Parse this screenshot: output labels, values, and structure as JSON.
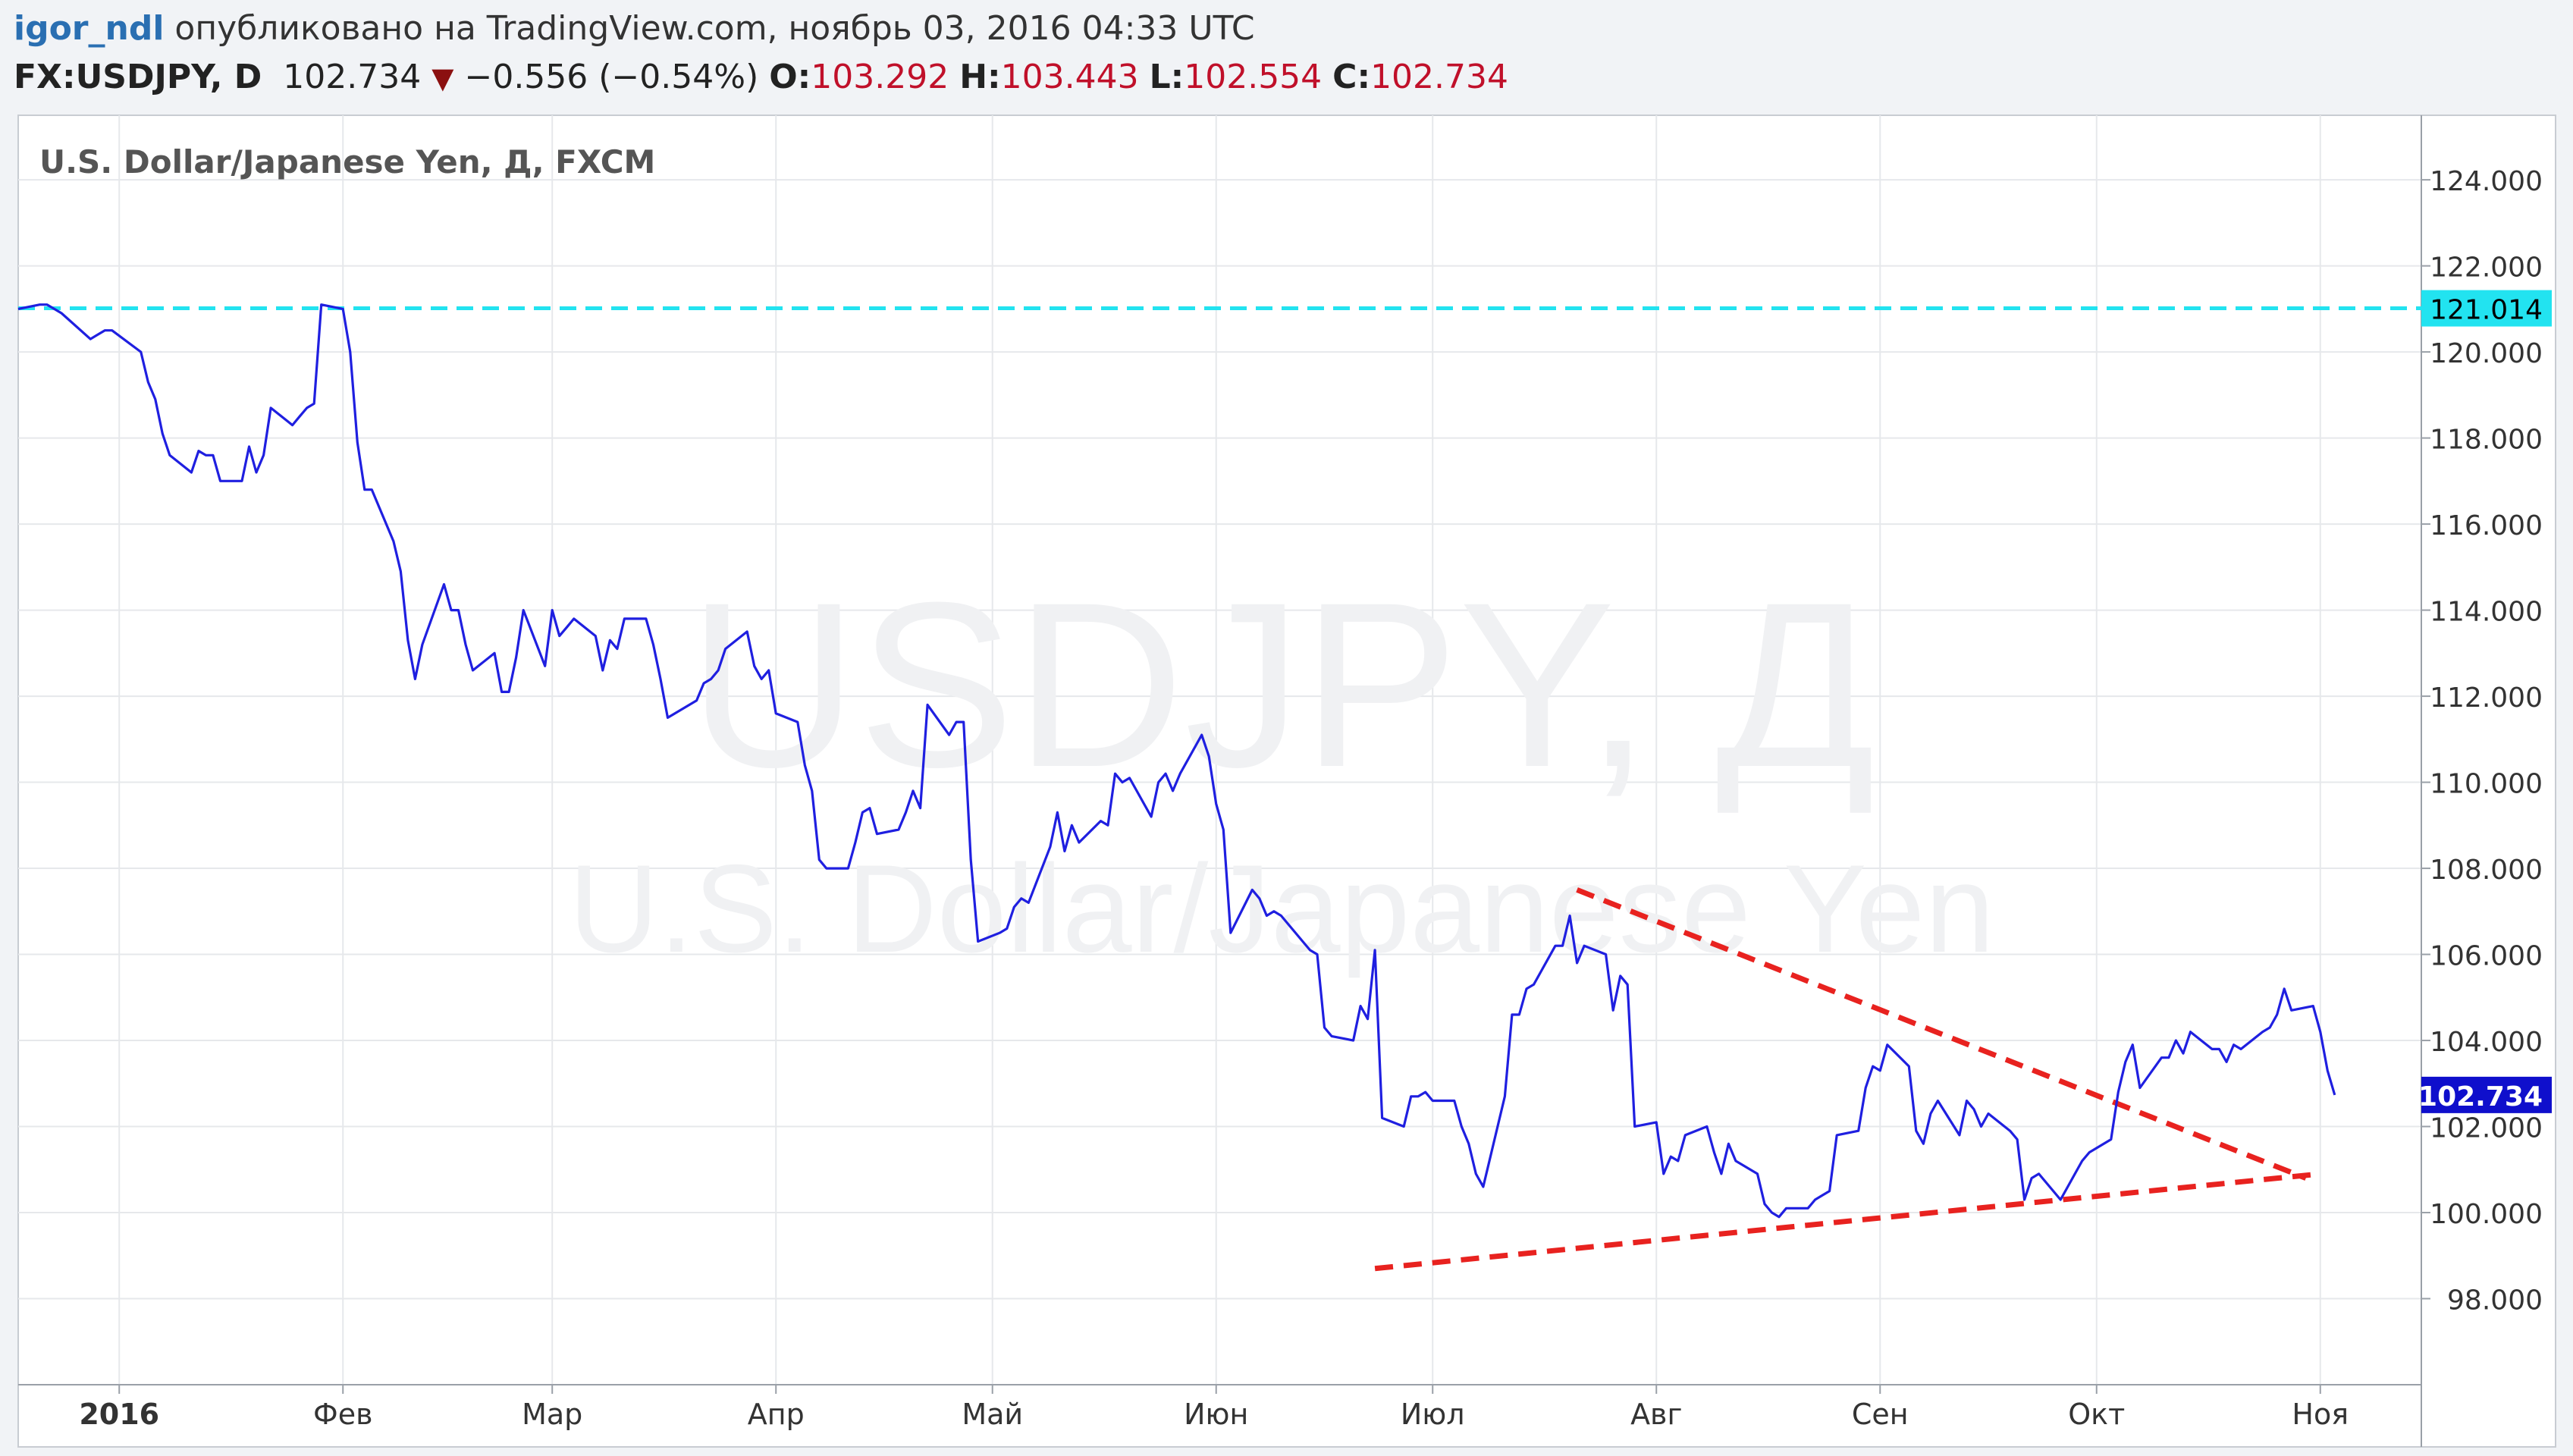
{
  "header": {
    "author": "igor_ndl",
    "published": "опубликовано на TradingView.com, ноябрь 03, 2016 04:33 UTC"
  },
  "ticker": {
    "symbol": "FX:USDJPY, D",
    "last": "102.734",
    "change": "−0.556 (−0.54%)",
    "o_label": "O:",
    "o_value": "103.292",
    "h_label": "H:",
    "h_value": "103.443",
    "l_label": "L:",
    "l_value": "102.554",
    "c_label": "C:",
    "c_value": "102.734"
  },
  "colors": {
    "price_line": "#1f1fe0",
    "resistance_line": "#22e3f0",
    "trendline": "#e8221f",
    "last_price_label": "#0f0fcc",
    "header_values": "#c0102a"
  },
  "chart_data": {
    "type": "line",
    "title": "U.S. Dollar/Japanese Yen, Д, FXCM",
    "watermark_symbol": "USDJPY, Д",
    "watermark_name": "U.S. Dollar/Japanese Yen",
    "ylim": [
      96.0,
      125.5
    ],
    "y_ticks": [
      "98.000",
      "100.000",
      "102.000",
      "104.000",
      "106.000",
      "108.000",
      "110.000",
      "112.000",
      "114.000",
      "116.000",
      "118.000",
      "120.000",
      "122.000",
      "124.000"
    ],
    "x_ticks": [
      {
        "label": "2016",
        "x": "2016-01-01"
      },
      {
        "label": "Фев",
        "x": "2016-02-01"
      },
      {
        "label": "Мар",
        "x": "2016-03-01"
      },
      {
        "label": "Апр",
        "x": "2016-04-01"
      },
      {
        "label": "Май",
        "x": "2016-05-01"
      },
      {
        "label": "Июн",
        "x": "2016-06-01"
      },
      {
        "label": "Июл",
        "x": "2016-07-01"
      },
      {
        "label": "Авг",
        "x": "2016-08-01"
      },
      {
        "label": "Сен",
        "x": "2016-09-01"
      },
      {
        "label": "Окт",
        "x": "2016-10-01"
      },
      {
        "label": "Ноя",
        "x": "2016-11-01"
      }
    ],
    "series": [
      {
        "values": [
          [
            "2015-12-18",
            121.0
          ],
          [
            "2015-12-21",
            121.1
          ],
          [
            "2015-12-22",
            121.1
          ],
          [
            "2015-12-23",
            121.0
          ],
          [
            "2015-12-24",
            120.9
          ],
          [
            "2015-12-28",
            120.3
          ],
          [
            "2015-12-29",
            120.4
          ],
          [
            "2015-12-30",
            120.5
          ],
          [
            "2015-12-31",
            120.5
          ],
          [
            "2016-01-04",
            120.0
          ],
          [
            "2016-01-05",
            119.3
          ],
          [
            "2016-01-06",
            118.9
          ],
          [
            "2016-01-07",
            118.1
          ],
          [
            "2016-01-08",
            117.6
          ],
          [
            "2016-01-11",
            117.2
          ],
          [
            "2016-01-12",
            117.7
          ],
          [
            "2016-01-13",
            117.6
          ],
          [
            "2016-01-14",
            117.6
          ],
          [
            "2016-01-15",
            117.0
          ],
          [
            "2016-01-18",
            117.0
          ],
          [
            "2016-01-19",
            117.8
          ],
          [
            "2016-01-20",
            117.2
          ],
          [
            "2016-01-21",
            117.6
          ],
          [
            "2016-01-22",
            118.7
          ],
          [
            "2016-01-25",
            118.3
          ],
          [
            "2016-01-26",
            118.5
          ],
          [
            "2016-01-27",
            118.7
          ],
          [
            "2016-01-28",
            118.8
          ],
          [
            "2016-01-29",
            121.1
          ],
          [
            "2016-02-01",
            121.0
          ],
          [
            "2016-02-02",
            120.0
          ],
          [
            "2016-02-03",
            117.9
          ],
          [
            "2016-02-04",
            116.8
          ],
          [
            "2016-02-05",
            116.8
          ],
          [
            "2016-02-08",
            115.6
          ],
          [
            "2016-02-09",
            114.9
          ],
          [
            "2016-02-10",
            113.3
          ],
          [
            "2016-02-11",
            112.4
          ],
          [
            "2016-02-12",
            113.2
          ],
          [
            "2016-02-15",
            114.6
          ],
          [
            "2016-02-16",
            114.0
          ],
          [
            "2016-02-17",
            114.0
          ],
          [
            "2016-02-18",
            113.2
          ],
          [
            "2016-02-19",
            112.6
          ],
          [
            "2016-02-22",
            113.0
          ],
          [
            "2016-02-23",
            112.1
          ],
          [
            "2016-02-24",
            112.1
          ],
          [
            "2016-02-25",
            112.9
          ],
          [
            "2016-02-26",
            114.0
          ],
          [
            "2016-02-29",
            112.7
          ],
          [
            "2016-03-01",
            114.0
          ],
          [
            "2016-03-02",
            113.4
          ],
          [
            "2016-03-03",
            113.6
          ],
          [
            "2016-03-04",
            113.8
          ],
          [
            "2016-03-07",
            113.4
          ],
          [
            "2016-03-08",
            112.6
          ],
          [
            "2016-03-09",
            113.3
          ],
          [
            "2016-03-10",
            113.1
          ],
          [
            "2016-03-11",
            113.8
          ],
          [
            "2016-03-14",
            113.8
          ],
          [
            "2016-03-15",
            113.2
          ],
          [
            "2016-03-16",
            112.4
          ],
          [
            "2016-03-17",
            111.5
          ],
          [
            "2016-03-18",
            111.6
          ],
          [
            "2016-03-21",
            111.9
          ],
          [
            "2016-03-22",
            112.3
          ],
          [
            "2016-03-23",
            112.4
          ],
          [
            "2016-03-24",
            112.6
          ],
          [
            "2016-03-25",
            113.1
          ],
          [
            "2016-03-28",
            113.5
          ],
          [
            "2016-03-29",
            112.7
          ],
          [
            "2016-03-30",
            112.4
          ],
          [
            "2016-03-31",
            112.6
          ],
          [
            "2016-04-01",
            111.6
          ],
          [
            "2016-04-04",
            111.4
          ],
          [
            "2016-04-05",
            110.4
          ],
          [
            "2016-04-06",
            109.8
          ],
          [
            "2016-04-07",
            108.2
          ],
          [
            "2016-04-08",
            108.0
          ],
          [
            "2016-04-11",
            108.0
          ],
          [
            "2016-04-12",
            108.6
          ],
          [
            "2016-04-13",
            109.3
          ],
          [
            "2016-04-14",
            109.4
          ],
          [
            "2016-04-15",
            108.8
          ],
          [
            "2016-04-18",
            108.9
          ],
          [
            "2016-04-19",
            109.3
          ],
          [
            "2016-04-20",
            109.8
          ],
          [
            "2016-04-21",
            109.4
          ],
          [
            "2016-04-22",
            111.8
          ],
          [
            "2016-04-25",
            111.1
          ],
          [
            "2016-04-26",
            111.4
          ],
          [
            "2016-04-27",
            111.4
          ],
          [
            "2016-04-28",
            108.2
          ],
          [
            "2016-04-29",
            106.3
          ],
          [
            "2016-05-02",
            106.5
          ],
          [
            "2016-05-03",
            106.6
          ],
          [
            "2016-05-04",
            107.1
          ],
          [
            "2016-05-05",
            107.3
          ],
          [
            "2016-05-06",
            107.2
          ],
          [
            "2016-05-09",
            108.5
          ],
          [
            "2016-05-10",
            109.3
          ],
          [
            "2016-05-11",
            108.4
          ],
          [
            "2016-05-12",
            109.0
          ],
          [
            "2016-05-13",
            108.6
          ],
          [
            "2016-05-16",
            109.1
          ],
          [
            "2016-05-17",
            109.0
          ],
          [
            "2016-05-18",
            110.2
          ],
          [
            "2016-05-19",
            110.0
          ],
          [
            "2016-05-20",
            110.1
          ],
          [
            "2016-05-23",
            109.2
          ],
          [
            "2016-05-24",
            110.0
          ],
          [
            "2016-05-25",
            110.2
          ],
          [
            "2016-05-26",
            109.8
          ],
          [
            "2016-05-27",
            110.2
          ],
          [
            "2016-05-30",
            111.1
          ],
          [
            "2016-05-31",
            110.6
          ],
          [
            "2016-06-01",
            109.5
          ],
          [
            "2016-06-02",
            108.9
          ],
          [
            "2016-06-03",
            106.5
          ],
          [
            "2016-06-06",
            107.5
          ],
          [
            "2016-06-07",
            107.3
          ],
          [
            "2016-06-08",
            106.9
          ],
          [
            "2016-06-09",
            107.0
          ],
          [
            "2016-06-10",
            106.9
          ],
          [
            "2016-06-13",
            106.3
          ],
          [
            "2016-06-14",
            106.1
          ],
          [
            "2016-06-15",
            106.0
          ],
          [
            "2016-06-16",
            104.3
          ],
          [
            "2016-06-17",
            104.1
          ],
          [
            "2016-06-20",
            104.0
          ],
          [
            "2016-06-21",
            104.8
          ],
          [
            "2016-06-22",
            104.5
          ],
          [
            "2016-06-23",
            106.1
          ],
          [
            "2016-06-24",
            102.2
          ],
          [
            "2016-06-27",
            102.0
          ],
          [
            "2016-06-28",
            102.7
          ],
          [
            "2016-06-29",
            102.7
          ],
          [
            "2016-06-30",
            102.8
          ],
          [
            "2016-07-01",
            102.6
          ],
          [
            "2016-07-04",
            102.6
          ],
          [
            "2016-07-05",
            102.0
          ],
          [
            "2016-07-06",
            101.6
          ],
          [
            "2016-07-07",
            100.9
          ],
          [
            "2016-07-08",
            100.6
          ],
          [
            "2016-07-11",
            102.7
          ],
          [
            "2016-07-12",
            104.6
          ],
          [
            "2016-07-13",
            104.6
          ],
          [
            "2016-07-14",
            105.2
          ],
          [
            "2016-07-15",
            105.3
          ],
          [
            "2016-07-18",
            106.2
          ],
          [
            "2016-07-19",
            106.2
          ],
          [
            "2016-07-20",
            106.9
          ],
          [
            "2016-07-21",
            105.8
          ],
          [
            "2016-07-22",
            106.2
          ],
          [
            "2016-07-25",
            106.0
          ],
          [
            "2016-07-26",
            104.7
          ],
          [
            "2016-07-27",
            105.5
          ],
          [
            "2016-07-28",
            105.3
          ],
          [
            "2016-07-29",
            102.0
          ],
          [
            "2016-08-01",
            102.1
          ],
          [
            "2016-08-02",
            100.9
          ],
          [
            "2016-08-03",
            101.3
          ],
          [
            "2016-08-04",
            101.2
          ],
          [
            "2016-08-05",
            101.8
          ],
          [
            "2016-08-08",
            102.0
          ],
          [
            "2016-08-09",
            101.4
          ],
          [
            "2016-08-10",
            100.9
          ],
          [
            "2016-08-11",
            101.6
          ],
          [
            "2016-08-12",
            101.2
          ],
          [
            "2016-08-15",
            100.9
          ],
          [
            "2016-08-16",
            100.2
          ],
          [
            "2016-08-17",
            100.0
          ],
          [
            "2016-08-18",
            99.9
          ],
          [
            "2016-08-19",
            100.1
          ],
          [
            "2016-08-22",
            100.1
          ],
          [
            "2016-08-23",
            100.3
          ],
          [
            "2016-08-24",
            100.4
          ],
          [
            "2016-08-25",
            100.5
          ],
          [
            "2016-08-26",
            101.8
          ],
          [
            "2016-08-29",
            101.9
          ],
          [
            "2016-08-30",
            102.9
          ],
          [
            "2016-08-31",
            103.4
          ],
          [
            "2016-09-01",
            103.3
          ],
          [
            "2016-09-02",
            103.9
          ],
          [
            "2016-09-05",
            103.4
          ],
          [
            "2016-09-06",
            101.9
          ],
          [
            "2016-09-07",
            101.6
          ],
          [
            "2016-09-08",
            102.3
          ],
          [
            "2016-09-09",
            102.6
          ],
          [
            "2016-09-12",
            101.8
          ],
          [
            "2016-09-13",
            102.6
          ],
          [
            "2016-09-14",
            102.4
          ],
          [
            "2016-09-15",
            102.0
          ],
          [
            "2016-09-16",
            102.3
          ],
          [
            "2016-09-19",
            101.9
          ],
          [
            "2016-09-20",
            101.7
          ],
          [
            "2016-09-21",
            100.3
          ],
          [
            "2016-09-22",
            100.8
          ],
          [
            "2016-09-23",
            100.9
          ],
          [
            "2016-09-26",
            100.3
          ],
          [
            "2016-09-27",
            100.6
          ],
          [
            "2016-09-28",
            100.9
          ],
          [
            "2016-09-29",
            101.2
          ],
          [
            "2016-09-30",
            101.4
          ],
          [
            "2016-10-03",
            101.7
          ],
          [
            "2016-10-04",
            102.8
          ],
          [
            "2016-10-05",
            103.5
          ],
          [
            "2016-10-06",
            103.9
          ],
          [
            "2016-10-07",
            102.9
          ],
          [
            "2016-10-10",
            103.6
          ],
          [
            "2016-10-11",
            103.6
          ],
          [
            "2016-10-12",
            104.0
          ],
          [
            "2016-10-13",
            103.7
          ],
          [
            "2016-10-14",
            104.2
          ],
          [
            "2016-10-17",
            103.8
          ],
          [
            "2016-10-18",
            103.8
          ],
          [
            "2016-10-19",
            103.5
          ],
          [
            "2016-10-20",
            103.9
          ],
          [
            "2016-10-21",
            103.8
          ],
          [
            "2016-10-24",
            104.2
          ],
          [
            "2016-10-25",
            104.3
          ],
          [
            "2016-10-26",
            104.6
          ],
          [
            "2016-10-27",
            105.2
          ],
          [
            "2016-10-28",
            104.7
          ],
          [
            "2016-10-31",
            104.8
          ],
          [
            "2016-11-01",
            104.2
          ],
          [
            "2016-11-02",
            103.3
          ],
          [
            "2016-11-03",
            102.734
          ]
        ]
      }
    ],
    "horizontal_line": {
      "value": 121.014,
      "label": "121.014"
    },
    "last_price": {
      "value": 102.734,
      "label": "102.734"
    },
    "trendlines": [
      {
        "from": [
          "2016-07-21",
          107.5
        ],
        "to": [
          "2016-10-30",
          100.8
        ]
      },
      {
        "from": [
          "2016-06-23",
          98.7
        ],
        "to": [
          "2016-11-01",
          100.9
        ]
      }
    ],
    "grid": true
  }
}
